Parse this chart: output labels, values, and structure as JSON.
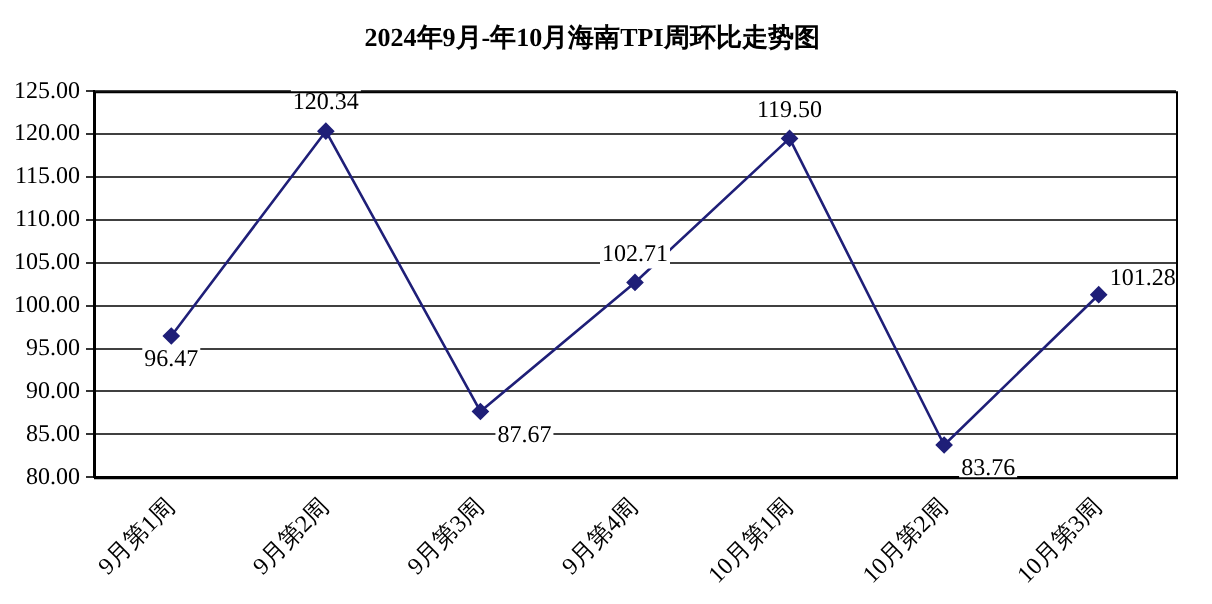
{
  "chart_data": {
    "type": "line",
    "title": "2024年9月-年10月海南TPI周环比走势图",
    "categories": [
      "9月第1周",
      "9月第2周",
      "9月第3周",
      "9月第4周",
      "10月第1周",
      "10月第2周",
      "10月第3周"
    ],
    "series": [
      {
        "color": "#1f1f78",
        "values": [
          96.47,
          120.34,
          87.67,
          102.71,
          119.5,
          83.76,
          101.28
        ],
        "value_labels": [
          "96.47",
          "120.34",
          "87.67",
          "102.71",
          "119.50",
          "83.76",
          "101.28"
        ]
      }
    ],
    "ylim": [
      80,
      125
    ],
    "yticks": [
      {
        "value": 80,
        "label": "80.00"
      },
      {
        "value": 85,
        "label": "85.00"
      },
      {
        "value": 90,
        "label": "90.00"
      },
      {
        "value": 95,
        "label": "95.00"
      },
      {
        "value": 100,
        "label": "100.00"
      },
      {
        "value": 105,
        "label": "105.00"
      },
      {
        "value": 110,
        "label": "110.00"
      },
      {
        "value": 115,
        "label": "115.00"
      },
      {
        "value": 120,
        "label": "120.00"
      },
      {
        "value": 125,
        "label": "125.00"
      }
    ],
    "grid": "y",
    "legend": false,
    "marker": "diamond",
    "line_style": "solid"
  }
}
